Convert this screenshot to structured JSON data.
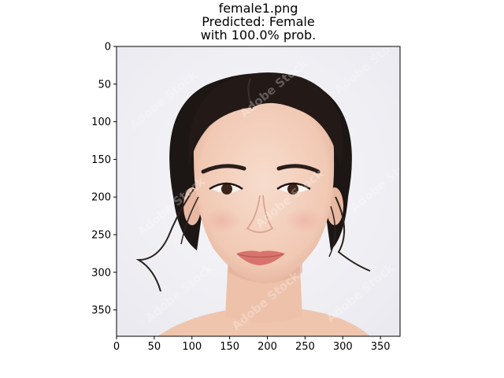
{
  "figure": {
    "title_lines": [
      "female1.png",
      "Predicted: Female",
      "with 100.0% prob."
    ]
  },
  "image": {
    "subject": "portrait photo of a woman with dark hair tied back, light background",
    "watermark_text": "Adobe Stock",
    "background_color": "#f0f0f4",
    "hair_color": "#1c1614",
    "skin_color": "#f2cdb9",
    "lip_color": "#d8736d"
  },
  "chart_data": {
    "type": "image",
    "title": "female1.png\nPredicted: Female\nwith 100.0% prob.",
    "xlabel": "",
    "ylabel": "",
    "xlim": [
      0,
      376
    ],
    "ylim": [
      385,
      0
    ],
    "xticks": [
      0,
      50,
      100,
      150,
      200,
      250,
      300,
      350
    ],
    "yticks": [
      0,
      50,
      100,
      150,
      200,
      250,
      300,
      350
    ],
    "grid": false
  }
}
